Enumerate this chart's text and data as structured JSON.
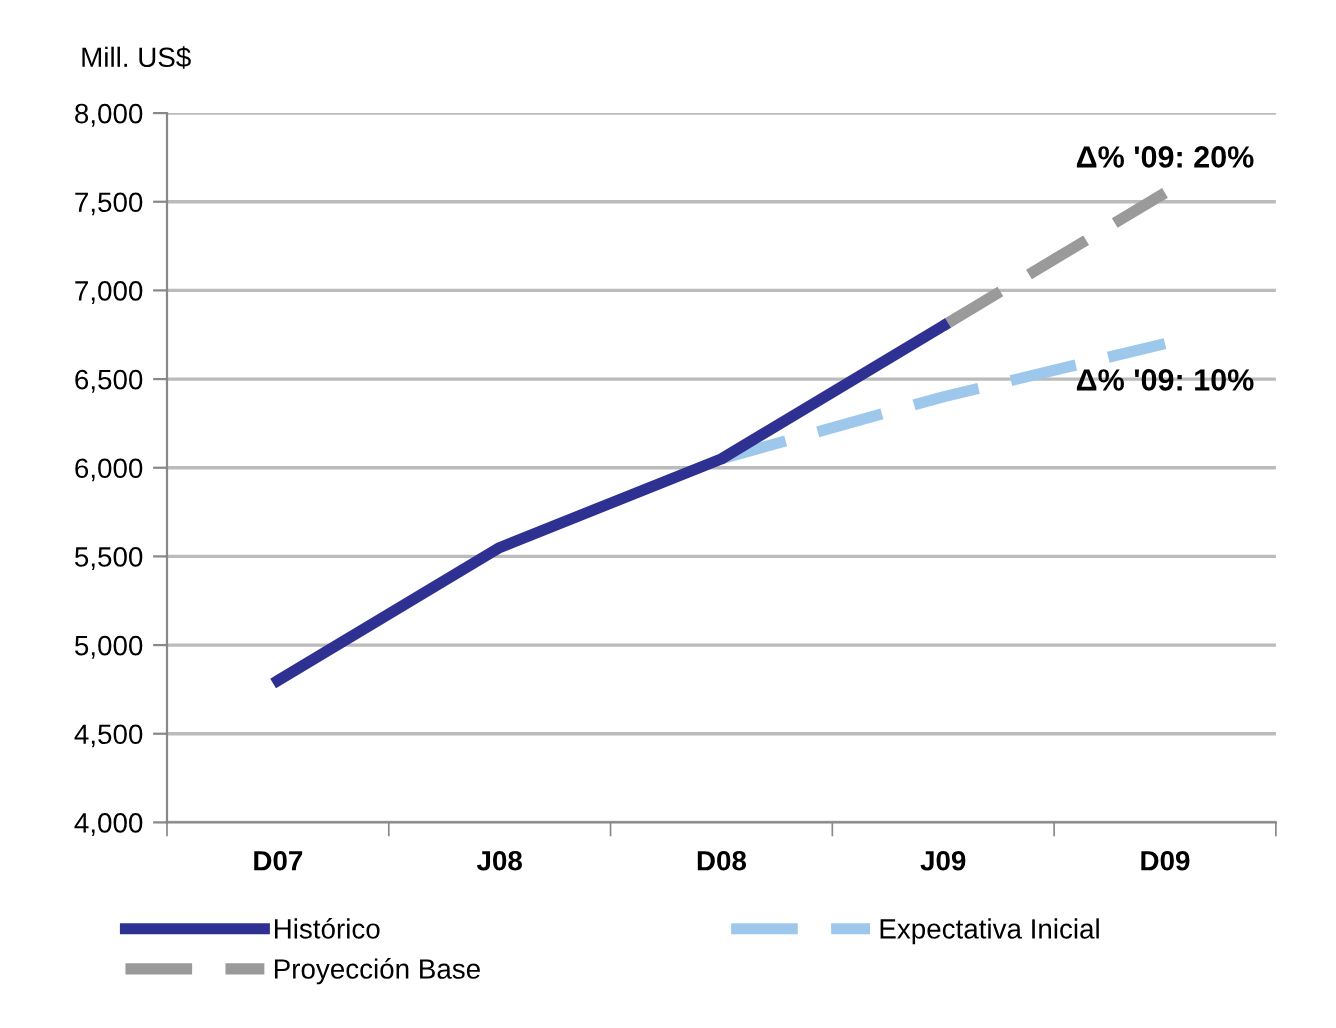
{
  "chart_data": {
    "type": "line",
    "ylabel": "Mill. US$",
    "categories": [
      "D07",
      "J08",
      "D08",
      "J09",
      "D09"
    ],
    "series": [
      {
        "name": "Histórico",
        "color": "#2e3192",
        "values": [
          4800,
          5550,
          6050,
          6800,
          null
        ],
        "line_style": "solid"
      },
      {
        "name": "Expectativa Inicial",
        "color": "#9dc8ec",
        "values": [
          null,
          null,
          6050,
          6400,
          6700
        ],
        "line_style": "dashed"
      },
      {
        "name": "Proyección Base",
        "color": "#9a9a9a",
        "values": [
          null,
          null,
          null,
          6800,
          7550
        ],
        "line_style": "dashed"
      }
    ],
    "ylim": [
      4000,
      8000
    ],
    "yticks": [
      {
        "value": 4000,
        "label": "4,000"
      },
      {
        "value": 4500,
        "label": "4,500"
      },
      {
        "value": 5000,
        "label": "5,000"
      },
      {
        "value": 5500,
        "label": "5,500"
      },
      {
        "value": 6000,
        "label": "6,000"
      },
      {
        "value": 6500,
        "label": "6,500"
      },
      {
        "value": 7000,
        "label": "7,000"
      },
      {
        "value": 7500,
        "label": "7,500"
      },
      {
        "value": 8000,
        "label": "8,000"
      }
    ],
    "grid": "y",
    "legend": "bottom",
    "marker": "none",
    "annotations": [
      {
        "text": "Δ% '09: 20%",
        "x": "D09",
        "y": 7550
      },
      {
        "text": "Δ% '09: 10%",
        "x": "D09",
        "y": 6700
      }
    ]
  }
}
